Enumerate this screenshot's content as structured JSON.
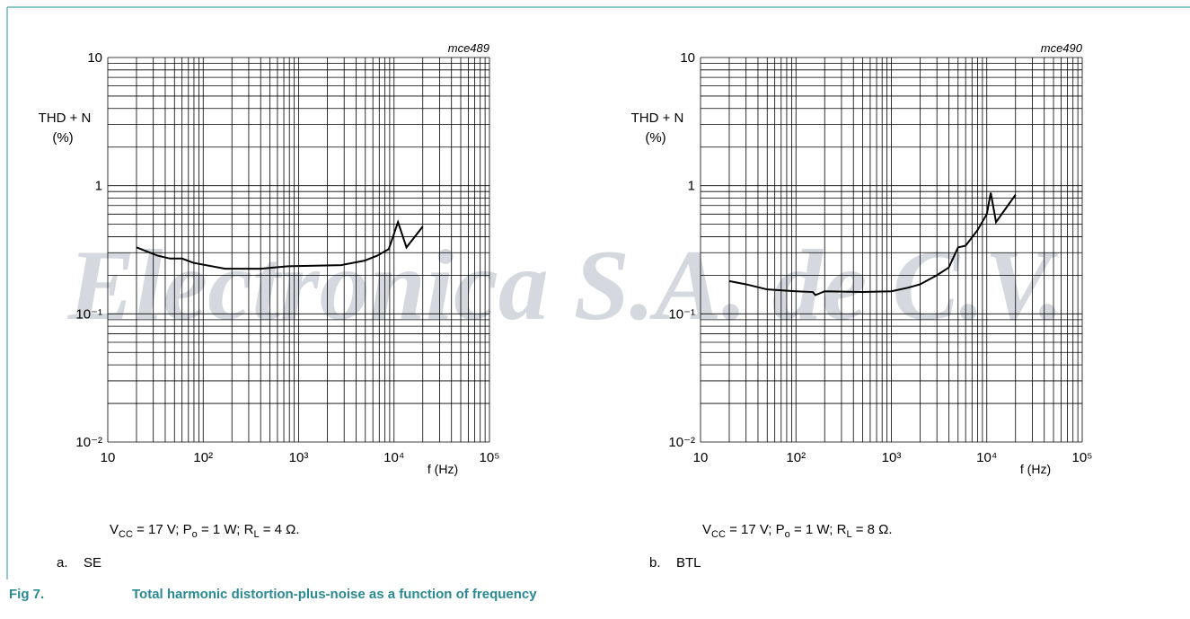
{
  "chart_data": [
    {
      "type": "line",
      "code": "mce489",
      "y_label": "THD + N",
      "y_unit": "(%)",
      "x_label": "f (Hz)",
      "x_log": true,
      "y_log": true,
      "grid": true,
      "minor_grid": true,
      "xlim": [
        10,
        100000
      ],
      "ylim": [
        0.01,
        10
      ],
      "xticks": [
        10,
        {
          "value": 100,
          "label": "10²"
        },
        {
          "value": 1000,
          "label": "10³"
        },
        {
          "value": 10000,
          "label": "10⁴"
        },
        {
          "value": 100000,
          "label": "10⁵"
        }
      ],
      "yticks": [
        {
          "value": 0.01,
          "label": "10⁻²"
        },
        {
          "value": 0.1,
          "label": "10⁻¹"
        },
        1,
        10
      ],
      "x": [
        20,
        33,
        45,
        60,
        79,
        170,
        400,
        770,
        2800,
        4900,
        6700,
        8800,
        11000,
        13500,
        20000
      ],
      "series": [
        {
          "color": "#000000",
          "values": [
            0.33,
            0.285,
            0.27,
            0.27,
            0.25,
            0.225,
            0.225,
            0.235,
            0.24,
            0.26,
            0.285,
            0.32,
            0.52,
            0.33,
            0.48
          ]
        }
      ],
      "conditions": [
        "V",
        "CC",
        " = 17 V; P",
        "o",
        " = 1 W; R",
        "L",
        " = 4 Ω."
      ],
      "panel_label": "a.",
      "panel_name": "SE"
    },
    {
      "type": "line",
      "code": "mce490",
      "y_label": "THD + N",
      "y_unit": "(%)",
      "x_label": "f (Hz)",
      "x_log": true,
      "y_log": true,
      "grid": true,
      "minor_grid": true,
      "xlim": [
        10,
        100000
      ],
      "ylim": [
        0.01,
        10
      ],
      "xticks": [
        10,
        {
          "value": 100,
          "label": "10²"
        },
        {
          "value": 1000,
          "label": "10³"
        },
        {
          "value": 10000,
          "label": "10⁴"
        },
        {
          "value": 100000,
          "label": "10⁵"
        }
      ],
      "yticks": [
        {
          "value": 0.01,
          "label": "10⁻²"
        },
        {
          "value": 0.1,
          "label": "10⁻¹"
        },
        1,
        10
      ],
      "x": [
        20,
        30,
        50,
        100,
        150,
        160,
        200,
        500,
        1000,
        1500,
        2000,
        3000,
        4000,
        5000,
        6000,
        8000,
        10000,
        11000,
        12500,
        20000
      ],
      "series": [
        {
          "color": "#000000",
          "values": [
            0.18,
            0.17,
            0.155,
            0.15,
            0.148,
            0.14,
            0.15,
            0.148,
            0.15,
            0.16,
            0.17,
            0.2,
            0.23,
            0.33,
            0.34,
            0.45,
            0.6,
            0.88,
            0.52,
            0.85
          ]
        }
      ],
      "conditions": [
        "V",
        "CC",
        " = 17 V; P",
        "o",
        " = 1 W; R",
        "L",
        " = 8 Ω."
      ],
      "panel_label": "b.",
      "panel_name": "BTL"
    }
  ],
  "watermark": "Electronica S.A. de C.V.",
  "figure_label": "Fig 7.",
  "figure_caption": "Total harmonic distortion-plus-noise as a function of frequency"
}
